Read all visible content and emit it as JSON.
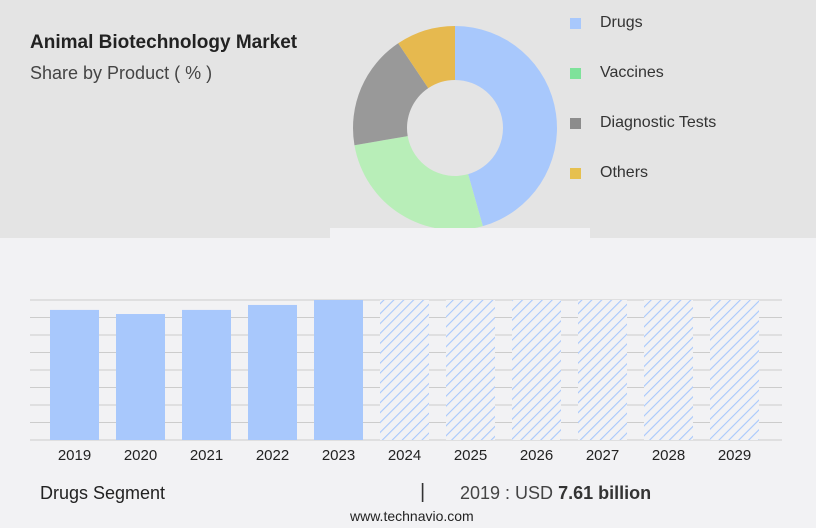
{
  "header": {
    "title": "Animal Biotechnology Market",
    "subtitle": "Share by Product ( % )"
  },
  "chart_data": [
    {
      "type": "pie",
      "style": "donut",
      "categories": [
        "Drugs",
        "Vaccines",
        "Diagnostic Tests",
        "Others"
      ],
      "values": [
        45.6,
        26.7,
        18.3,
        9.4
      ],
      "colors": [
        "#a8c8fc",
        "#b8eeb8",
        "#999999",
        "#e6b94f"
      ],
      "legend_colors": [
        "#a8c8fc",
        "#7ee29a",
        "#8c8c8c",
        "#e6c04f"
      ],
      "legend": "right"
    },
    {
      "type": "bar",
      "categories": [
        "2019",
        "2020",
        "2021",
        "2022",
        "2023",
        "2024",
        "2025",
        "2026",
        "2027",
        "2028",
        "2029"
      ],
      "values": [
        7.61,
        7.37,
        7.61,
        7.9,
        8.19,
        null,
        null,
        null,
        null,
        null,
        null
      ],
      "forecast": [
        false,
        false,
        false,
        false,
        false,
        true,
        true,
        true,
        true,
        true,
        true
      ],
      "unit": "USD billion",
      "grid": true,
      "color": "#a8c8fc"
    }
  ],
  "footer": {
    "segment": "Drugs Segment",
    "separator": "|",
    "year_label": "2019 : USD",
    "value": "7.61 billion",
    "url": "www.technavio.com"
  }
}
